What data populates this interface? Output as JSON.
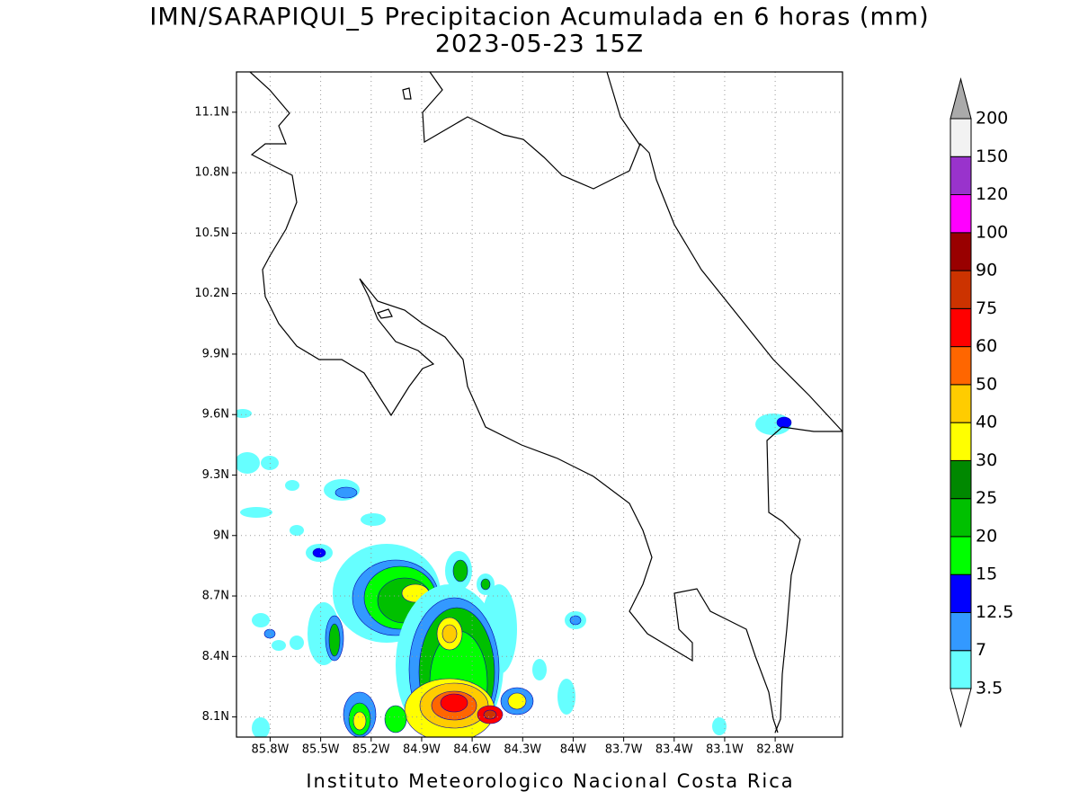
{
  "title": "IMN/SARAPIQUI_5 Precipitacion Acumulada en 6 horas (mm)",
  "subtitle": "2023-05-23 15Z",
  "footer": "Instituto Meteorologico Nacional Costa Rica",
  "map": {
    "lonlim": [
      -86,
      -82.4
    ],
    "latlim": [
      8,
      11.3
    ],
    "lat_ticks": [
      {
        "value": 8.1,
        "label": "8.1N"
      },
      {
        "value": 8.4,
        "label": "8.4N"
      },
      {
        "value": 8.7,
        "label": "8.7N"
      },
      {
        "value": 9,
        "label": "9N"
      },
      {
        "value": 9.3,
        "label": "9.3N"
      },
      {
        "value": 9.6,
        "label": "9.6N"
      },
      {
        "value": 9.9,
        "label": "9.9N"
      },
      {
        "value": 10.2,
        "label": "10.2N"
      },
      {
        "value": 10.5,
        "label": "10.5N"
      },
      {
        "value": 10.8,
        "label": "10.8N"
      },
      {
        "value": 11.1,
        "label": "11.1N"
      }
    ],
    "lon_ticks": [
      {
        "value": -85.8,
        "label": "85.8W"
      },
      {
        "value": -85.5,
        "label": "85.5W"
      },
      {
        "value": -85.2,
        "label": "85.2W"
      },
      {
        "value": -84.9,
        "label": "84.9W"
      },
      {
        "value": -84.6,
        "label": "84.6W"
      },
      {
        "value": -84.3,
        "label": "84.3W"
      },
      {
        "value": -84,
        "label": "84W"
      },
      {
        "value": -83.7,
        "label": "83.7W"
      },
      {
        "value": -83.4,
        "label": "83.4W"
      },
      {
        "value": -83.1,
        "label": "83.1W"
      },
      {
        "value": -82.8,
        "label": "82.8W"
      }
    ]
  },
  "colorbar": {
    "levels": [
      3.5,
      7,
      12.5,
      15,
      20,
      25,
      30,
      40,
      50,
      60,
      75,
      90,
      100,
      120,
      150,
      200
    ],
    "colors": [
      "#ffffff",
      "#66ffff",
      "#3399ff",
      "#0000ff",
      "#00ff00",
      "#00c000",
      "#008800",
      "#ffff00",
      "#ffcc00",
      "#ff6600",
      "#ff0000",
      "#cc3300",
      "#990000",
      "#ff00ff",
      "#9933cc",
      "#f2f2f2",
      "#aaaaaa"
    ]
  }
}
